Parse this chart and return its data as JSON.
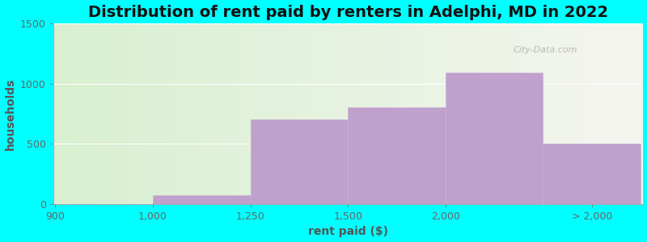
{
  "title": "Distribution of rent paid by renters in Adelphi, MD in 2022",
  "xlabel": "rent paid ($)",
  "ylabel": "households",
  "background_color": "#00FFFF",
  "bar_color": "#c0a0cc",
  "bar_edge_color": "#c8b0d4",
  "ylim": [
    0,
    1500
  ],
  "yticks": [
    0,
    500,
    1000,
    1500
  ],
  "bin_edges": [
    0,
    1,
    2,
    3,
    4,
    5,
    6
  ],
  "values": [
    0,
    75,
    700,
    800,
    1090,
    500
  ],
  "xtick_labels": [
    "900",
    "1,000",
    "1,250",
    "1,500",
    "2,000",
    "> 2,000"
  ],
  "xtick_positions": [
    0,
    1,
    2,
    3,
    4,
    6
  ],
  "title_fontsize": 14,
  "axis_label_fontsize": 10,
  "tick_fontsize": 9,
  "watermark": "City-Data.com",
  "grad_color_left": "#d8f0d0",
  "grad_color_right": "#f5f5f0"
}
